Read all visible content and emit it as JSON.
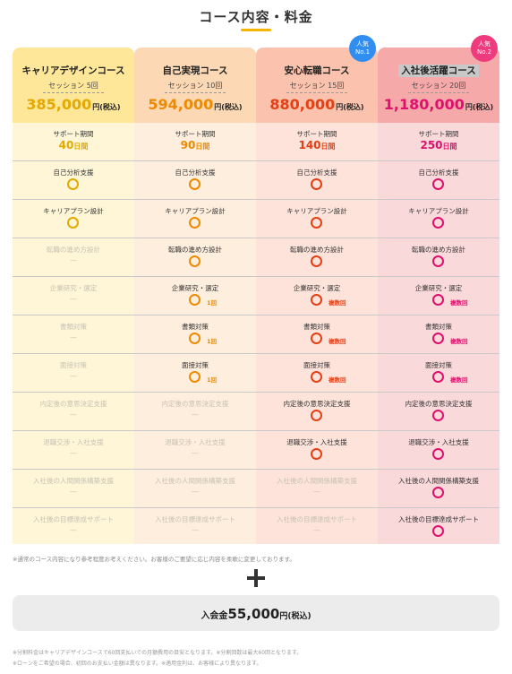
{
  "section_title": "コース内容・料金",
  "colors": {
    "yellow": "#e4a900",
    "orange": "#ee8a00",
    "red": "#e53f14",
    "pink": "#e0106e"
  },
  "plans": [
    {
      "name": "キャリアデザインコース",
      "sessions": "セッション 5回",
      "price": "385,000",
      "price_unit": "円(税込)",
      "badge": null
    },
    {
      "name": "自己実現コース",
      "sessions": "セッション 10回",
      "price": "594,000",
      "price_unit": "円(税込)",
      "badge": null
    },
    {
      "name": "安心転職コース",
      "sessions": "セッション 15回",
      "price": "880,000",
      "price_unit": "円(税込)",
      "badge": "人気 No.1"
    },
    {
      "name": "入社後活躍コース",
      "sessions": "セッション 20回",
      "price": "1,180,000",
      "price_unit": "円(税込)",
      "badge": "人気 No.2"
    }
  ],
  "badges": [
    {
      "top": "人気",
      "bottom": "No.1"
    },
    {
      "top": "人気",
      "bottom": "No.2"
    }
  ],
  "support": {
    "label": "サポート期間",
    "values": [
      {
        "num": "40",
        "unit": "日間"
      },
      {
        "num": "90",
        "unit": "日間"
      },
      {
        "num": "140",
        "unit": "日間"
      },
      {
        "num": "250",
        "unit": "日間"
      }
    ]
  },
  "features": [
    {
      "label": "自己分析支援",
      "avail": [
        true,
        true,
        true,
        true
      ],
      "notes": [
        "",
        "",
        "",
        ""
      ]
    },
    {
      "label": "キャリアプラン設計",
      "avail": [
        true,
        true,
        true,
        true
      ],
      "notes": [
        "",
        "",
        "",
        ""
      ]
    },
    {
      "label": "転職の進め方設計",
      "avail": [
        false,
        true,
        true,
        true
      ],
      "notes": [
        "",
        "",
        "",
        ""
      ]
    },
    {
      "label": "企業研究・選定",
      "avail": [
        false,
        true,
        true,
        true
      ],
      "notes": [
        "",
        "1回",
        "複数回",
        "複数回"
      ]
    },
    {
      "label": "書類対策",
      "avail": [
        false,
        true,
        true,
        true
      ],
      "notes": [
        "",
        "1回",
        "複数回",
        "複数回"
      ]
    },
    {
      "label": "面接対策",
      "avail": [
        false,
        true,
        true,
        true
      ],
      "notes": [
        "",
        "1回",
        "複数回",
        "複数回"
      ]
    },
    {
      "label": "内定後の意思決定支援",
      "avail": [
        false,
        false,
        true,
        true
      ],
      "notes": [
        "",
        "",
        "",
        ""
      ]
    },
    {
      "label": "退職交渉・入社支援",
      "avail": [
        false,
        false,
        true,
        true
      ],
      "notes": [
        "",
        "",
        "",
        ""
      ]
    },
    {
      "label": "入社後の人間関係構築支援",
      "avail": [
        false,
        false,
        false,
        true
      ],
      "notes": [
        "",
        "",
        "",
        ""
      ]
    },
    {
      "label": "入社後の目標達成サポート",
      "avail": [
        false,
        false,
        false,
        true
      ],
      "notes": [
        "",
        "",
        "",
        ""
      ]
    }
  ],
  "unavailable_mark": "—",
  "footnote_top": "※通常のコース内容になり参考程度お考えください。お客様のご要望に応じ内容を柔軟に変更しております。",
  "enrollment": {
    "label": "入会金",
    "value": "55,000",
    "unit": "円(税込)"
  },
  "footnotes_bottom": [
    "※分割料金はキャリアデザインコースで60回支払いでの月額費用の目安となります。※分割回数は最大60回となります。",
    "※ローンをご希望の場合、初回のお支払い金額は異なります。※適用金利は、お客様により異なります。"
  ]
}
